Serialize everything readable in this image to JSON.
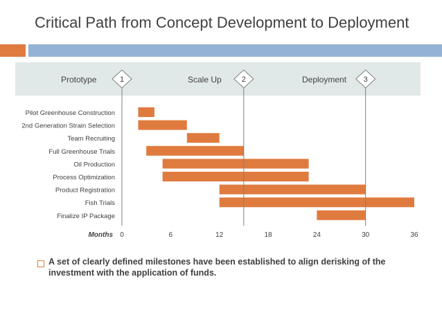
{
  "slide": {
    "title": "Critical Path from Concept Development to Deployment",
    "bullet": "A set of clearly defined milestones have been established to align derisking of the investment with the application of funds."
  },
  "colors": {
    "accent_orange": "#e07b3f",
    "accent_blue": "#94b3d4",
    "bar": "#e07b3f",
    "phase_band": "#e0e9e7",
    "text": "#404040",
    "milestone_line": "#7f7f7f"
  },
  "phases": [
    {
      "label": "Prototype",
      "milestone": "1",
      "month": 0
    },
    {
      "label": "Scale Up",
      "milestone": "2",
      "month": 15
    },
    {
      "label": "Deployment",
      "milestone": "3",
      "month": 30
    }
  ],
  "chart_data": {
    "type": "bar",
    "orientation": "horizontal-gantt",
    "title": "",
    "xlabel": "Months",
    "ylabel": "",
    "xlim": [
      0,
      36
    ],
    "xticks": [
      0,
      6,
      12,
      18,
      24,
      30,
      36
    ],
    "grid": false,
    "milestone_lines_at": [
      0,
      15,
      30
    ],
    "tasks": [
      {
        "name": "Pilot Greenhouse Construction",
        "start": 2,
        "end": 4
      },
      {
        "name": "2nd Generation Strain Selection",
        "start": 2,
        "end": 8
      },
      {
        "name": "Team Recruiting",
        "start": 8,
        "end": 12
      },
      {
        "name": "Full Greenhouse Trials",
        "start": 3,
        "end": 15
      },
      {
        "name": "Oil Production",
        "start": 5,
        "end": 23
      },
      {
        "name": "Process Optimization",
        "start": 5,
        "end": 23
      },
      {
        "name": "Product Registration",
        "start": 12,
        "end": 30
      },
      {
        "name": "Fish Trials",
        "start": 12,
        "end": 36
      },
      {
        "name": "Finalize IP Package",
        "start": 24,
        "end": 30
      }
    ]
  }
}
